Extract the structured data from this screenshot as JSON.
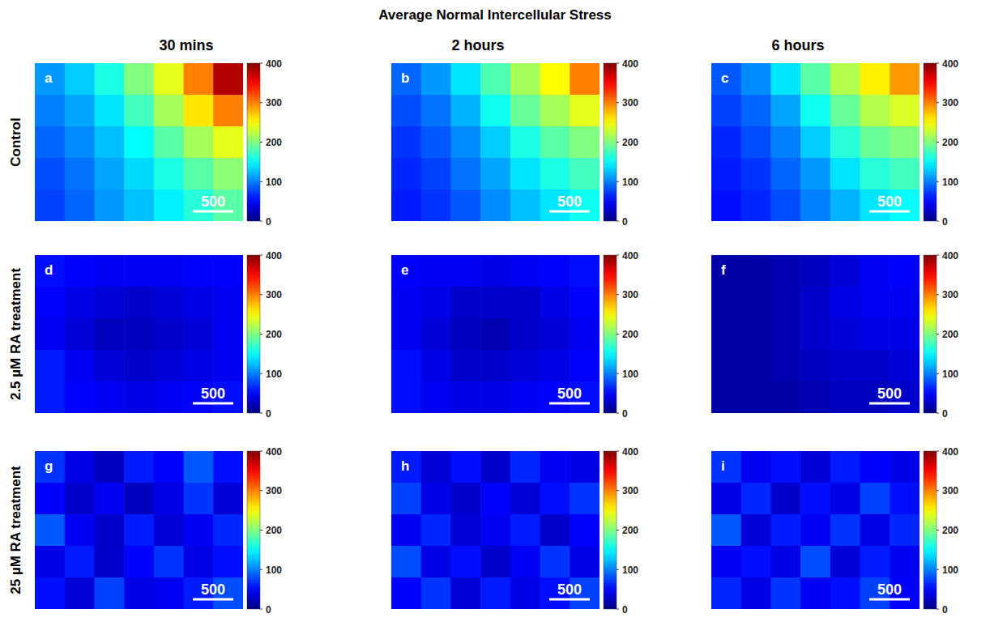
{
  "title": "Average Normal Intercellular Stress",
  "column_titles": [
    "30 mins",
    "2 hours",
    "6 hours"
  ],
  "row_titles": [
    "Control",
    "2.5 µM RA treatment",
    "25 µM RA treatment"
  ],
  "chart_data": [
    {
      "type": "heatmap",
      "panel": "a",
      "scale_bar": "500",
      "tick_labels": false,
      "cells": [
        [
          110,
          130,
          160,
          200,
          240,
          300,
          380
        ],
        [
          100,
          115,
          140,
          175,
          215,
          260,
          300
        ],
        [
          90,
          105,
          125,
          150,
          185,
          215,
          240
        ],
        [
          80,
          95,
          115,
          135,
          160,
          185,
          205
        ],
        [
          75,
          90,
          110,
          125,
          145,
          165,
          185
        ]
      ],
      "colorbar": {
        "range": [
          0,
          400
        ],
        "ticks": [
          0,
          100,
          200,
          300,
          400
        ]
      }
    },
    {
      "type": "heatmap",
      "panel": "b",
      "scale_bar": "500",
      "tick_labels": false,
      "cells": [
        [
          90,
          110,
          140,
          180,
          215,
          250,
          300
        ],
        [
          80,
          95,
          120,
          155,
          190,
          215,
          240
        ],
        [
          70,
          85,
          105,
          130,
          160,
          185,
          200
        ],
        [
          65,
          75,
          95,
          115,
          140,
          160,
          175
        ],
        [
          60,
          70,
          85,
          105,
          125,
          140,
          155
        ]
      ],
      "colorbar": {
        "range": [
          0,
          400
        ],
        "ticks": [
          0,
          100,
          200,
          300,
          400
        ]
      }
    },
    {
      "type": "heatmap",
      "panel": "c",
      "scale_bar": "500",
      "tick_labels": false,
      "cells": [
        [
          85,
          105,
          140,
          185,
          220,
          255,
          290
        ],
        [
          75,
          90,
          115,
          155,
          190,
          220,
          235
        ],
        [
          65,
          80,
          100,
          130,
          165,
          190,
          200
        ],
        [
          60,
          70,
          90,
          110,
          140,
          165,
          175
        ],
        [
          55,
          65,
          80,
          100,
          120,
          140,
          150
        ]
      ],
      "colorbar": {
        "range": [
          0,
          400
        ],
        "ticks": [
          0,
          100,
          200,
          300,
          400
        ]
      }
    },
    {
      "type": "heatmap",
      "panel": "d",
      "scale_bar": "500",
      "tick_labels": false,
      "cells": [
        [
          55,
          50,
          45,
          45,
          45,
          50,
          50
        ],
        [
          50,
          40,
          35,
          30,
          35,
          40,
          45
        ],
        [
          45,
          35,
          25,
          25,
          30,
          35,
          45
        ],
        [
          60,
          45,
          35,
          30,
          35,
          40,
          45
        ],
        [
          60,
          50,
          45,
          40,
          45,
          50,
          55
        ]
      ],
      "colorbar": {
        "range": [
          0,
          400
        ],
        "ticks": [
          0,
          100,
          200,
          300,
          400
        ]
      }
    },
    {
      "type": "heatmap",
      "panel": "e",
      "scale_bar": "500",
      "tick_labels": false,
      "cells": [
        [
          50,
          45,
          45,
          40,
          45,
          50,
          55
        ],
        [
          45,
          40,
          30,
          30,
          30,
          40,
          50
        ],
        [
          45,
          35,
          25,
          20,
          30,
          35,
          45
        ],
        [
          55,
          40,
          30,
          30,
          35,
          40,
          50
        ],
        [
          55,
          45,
          40,
          40,
          45,
          50,
          55
        ]
      ],
      "colorbar": {
        "range": [
          0,
          400
        ],
        "ticks": [
          0,
          100,
          200,
          300,
          400
        ]
      }
    },
    {
      "type": "heatmap",
      "panel": "f",
      "scale_bar": "500",
      "tick_labels": false,
      "cells": [
        [
          15,
          15,
          20,
          25,
          35,
          45,
          50
        ],
        [
          15,
          15,
          20,
          30,
          40,
          45,
          45
        ],
        [
          15,
          15,
          20,
          30,
          35,
          40,
          40
        ],
        [
          15,
          15,
          20,
          25,
          30,
          30,
          35
        ],
        [
          15,
          15,
          15,
          20,
          25,
          25,
          30
        ]
      ],
      "colorbar": {
        "range": [
          0,
          400
        ],
        "ticks": [
          0,
          100,
          200,
          300,
          400
        ]
      }
    },
    {
      "type": "heatmap",
      "panel": "g",
      "scale_bar": "500",
      "tick_labels": false,
      "cells": [
        [
          70,
          40,
          25,
          60,
          50,
          85,
          55
        ],
        [
          50,
          30,
          45,
          25,
          40,
          70,
          35
        ],
        [
          85,
          45,
          30,
          60,
          35,
          45,
          65
        ],
        [
          40,
          60,
          30,
          50,
          70,
          40,
          55
        ],
        [
          55,
          35,
          75,
          40,
          45,
          60,
          80
        ]
      ],
      "colorbar": {
        "range": [
          0,
          400
        ],
        "ticks": [
          0,
          100,
          200,
          300,
          400
        ]
      }
    },
    {
      "type": "heatmap",
      "panel": "h",
      "scale_bar": "500",
      "tick_labels": false,
      "cells": [
        [
          60,
          35,
          55,
          30,
          65,
          45,
          40
        ],
        [
          75,
          40,
          30,
          50,
          35,
          55,
          70
        ],
        [
          45,
          65,
          35,
          45,
          60,
          30,
          50
        ],
        [
          80,
          40,
          55,
          30,
          45,
          70,
          40
        ],
        [
          50,
          70,
          35,
          60,
          40,
          55,
          75
        ]
      ],
      "colorbar": {
        "range": [
          0,
          400
        ],
        "ticks": [
          0,
          100,
          200,
          300,
          400
        ]
      }
    },
    {
      "type": "heatmap",
      "panel": "i",
      "scale_bar": "500",
      "tick_labels": false,
      "cells": [
        [
          70,
          45,
          55,
          35,
          60,
          50,
          40
        ],
        [
          40,
          65,
          30,
          55,
          40,
          75,
          55
        ],
        [
          85,
          35,
          60,
          45,
          70,
          40,
          65
        ],
        [
          45,
          55,
          40,
          80,
          35,
          60,
          45
        ],
        [
          65,
          40,
          70,
          45,
          55,
          75,
          50
        ]
      ],
      "colorbar": {
        "range": [
          0,
          400
        ],
        "ticks": [
          0,
          100,
          200,
          300,
          400
        ]
      }
    }
  ]
}
